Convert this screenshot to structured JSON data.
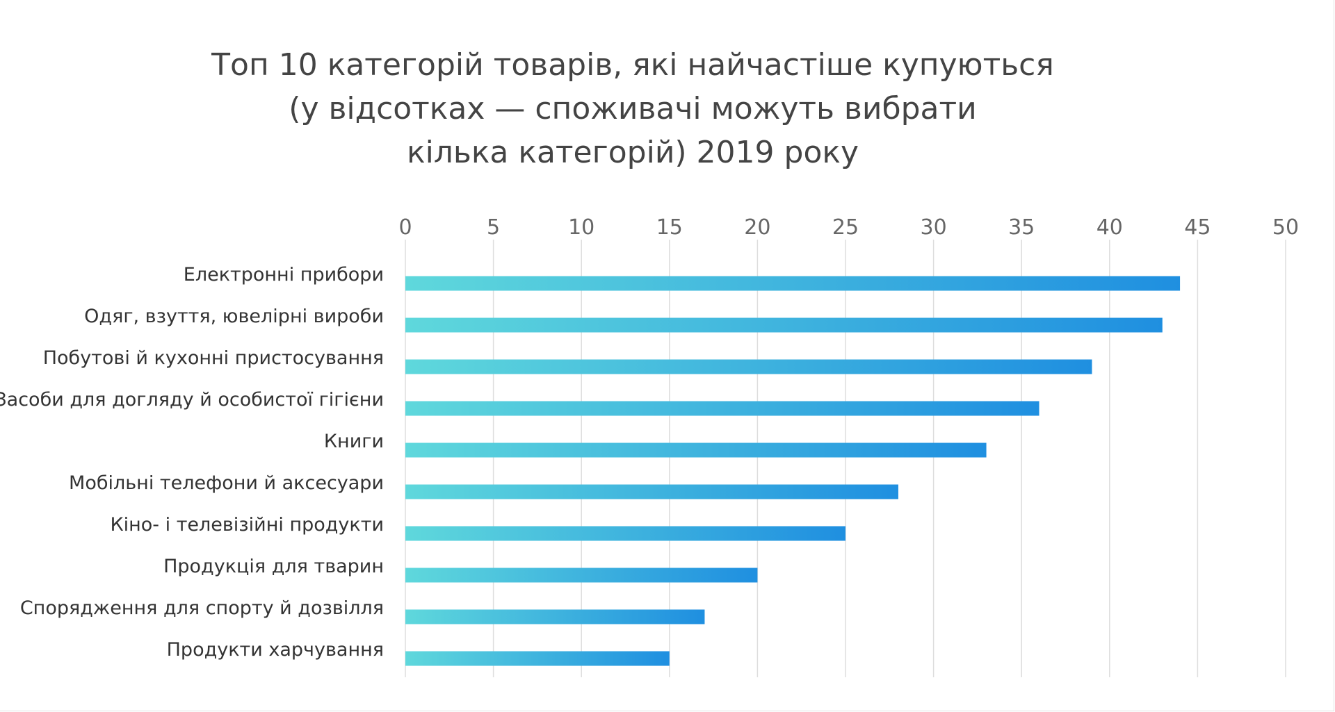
{
  "chart_data": {
    "type": "bar",
    "orientation": "horizontal",
    "title_lines": [
      "Топ 10 категорій товарів, які найчастіше купуються",
      "(у відсотках — споживачі можуть вибрати",
      "кілька категорій) 2019 року"
    ],
    "xlabel": "",
    "ylabel": "",
    "xlim": [
      0,
      50
    ],
    "x_ticks": [
      "0",
      "5",
      "10",
      "15",
      "20",
      "25",
      "30",
      "35",
      "40",
      "45",
      "50"
    ],
    "x_axis_position": "top",
    "grid": true,
    "categories": [
      "Електронні прибори",
      "Одяг, взуття, ювелірні вироби",
      "Побутові й кухонні пристосування",
      "Засоби для догляду й особистої гігієни",
      "Книги",
      "Мобільні телефони й аксесуари",
      "Кіно- і телевізійні продукти",
      "Продукція для тварин",
      "Спорядження для спорту й дозвілля",
      "Продукти харчування"
    ],
    "values": [
      44,
      43,
      39,
      36,
      33,
      28,
      25,
      20,
      17,
      15
    ],
    "colors": {
      "bar_start": "#5fd8dc",
      "bar_end": "#1f8fe0",
      "grid": "#dddddd"
    }
  }
}
